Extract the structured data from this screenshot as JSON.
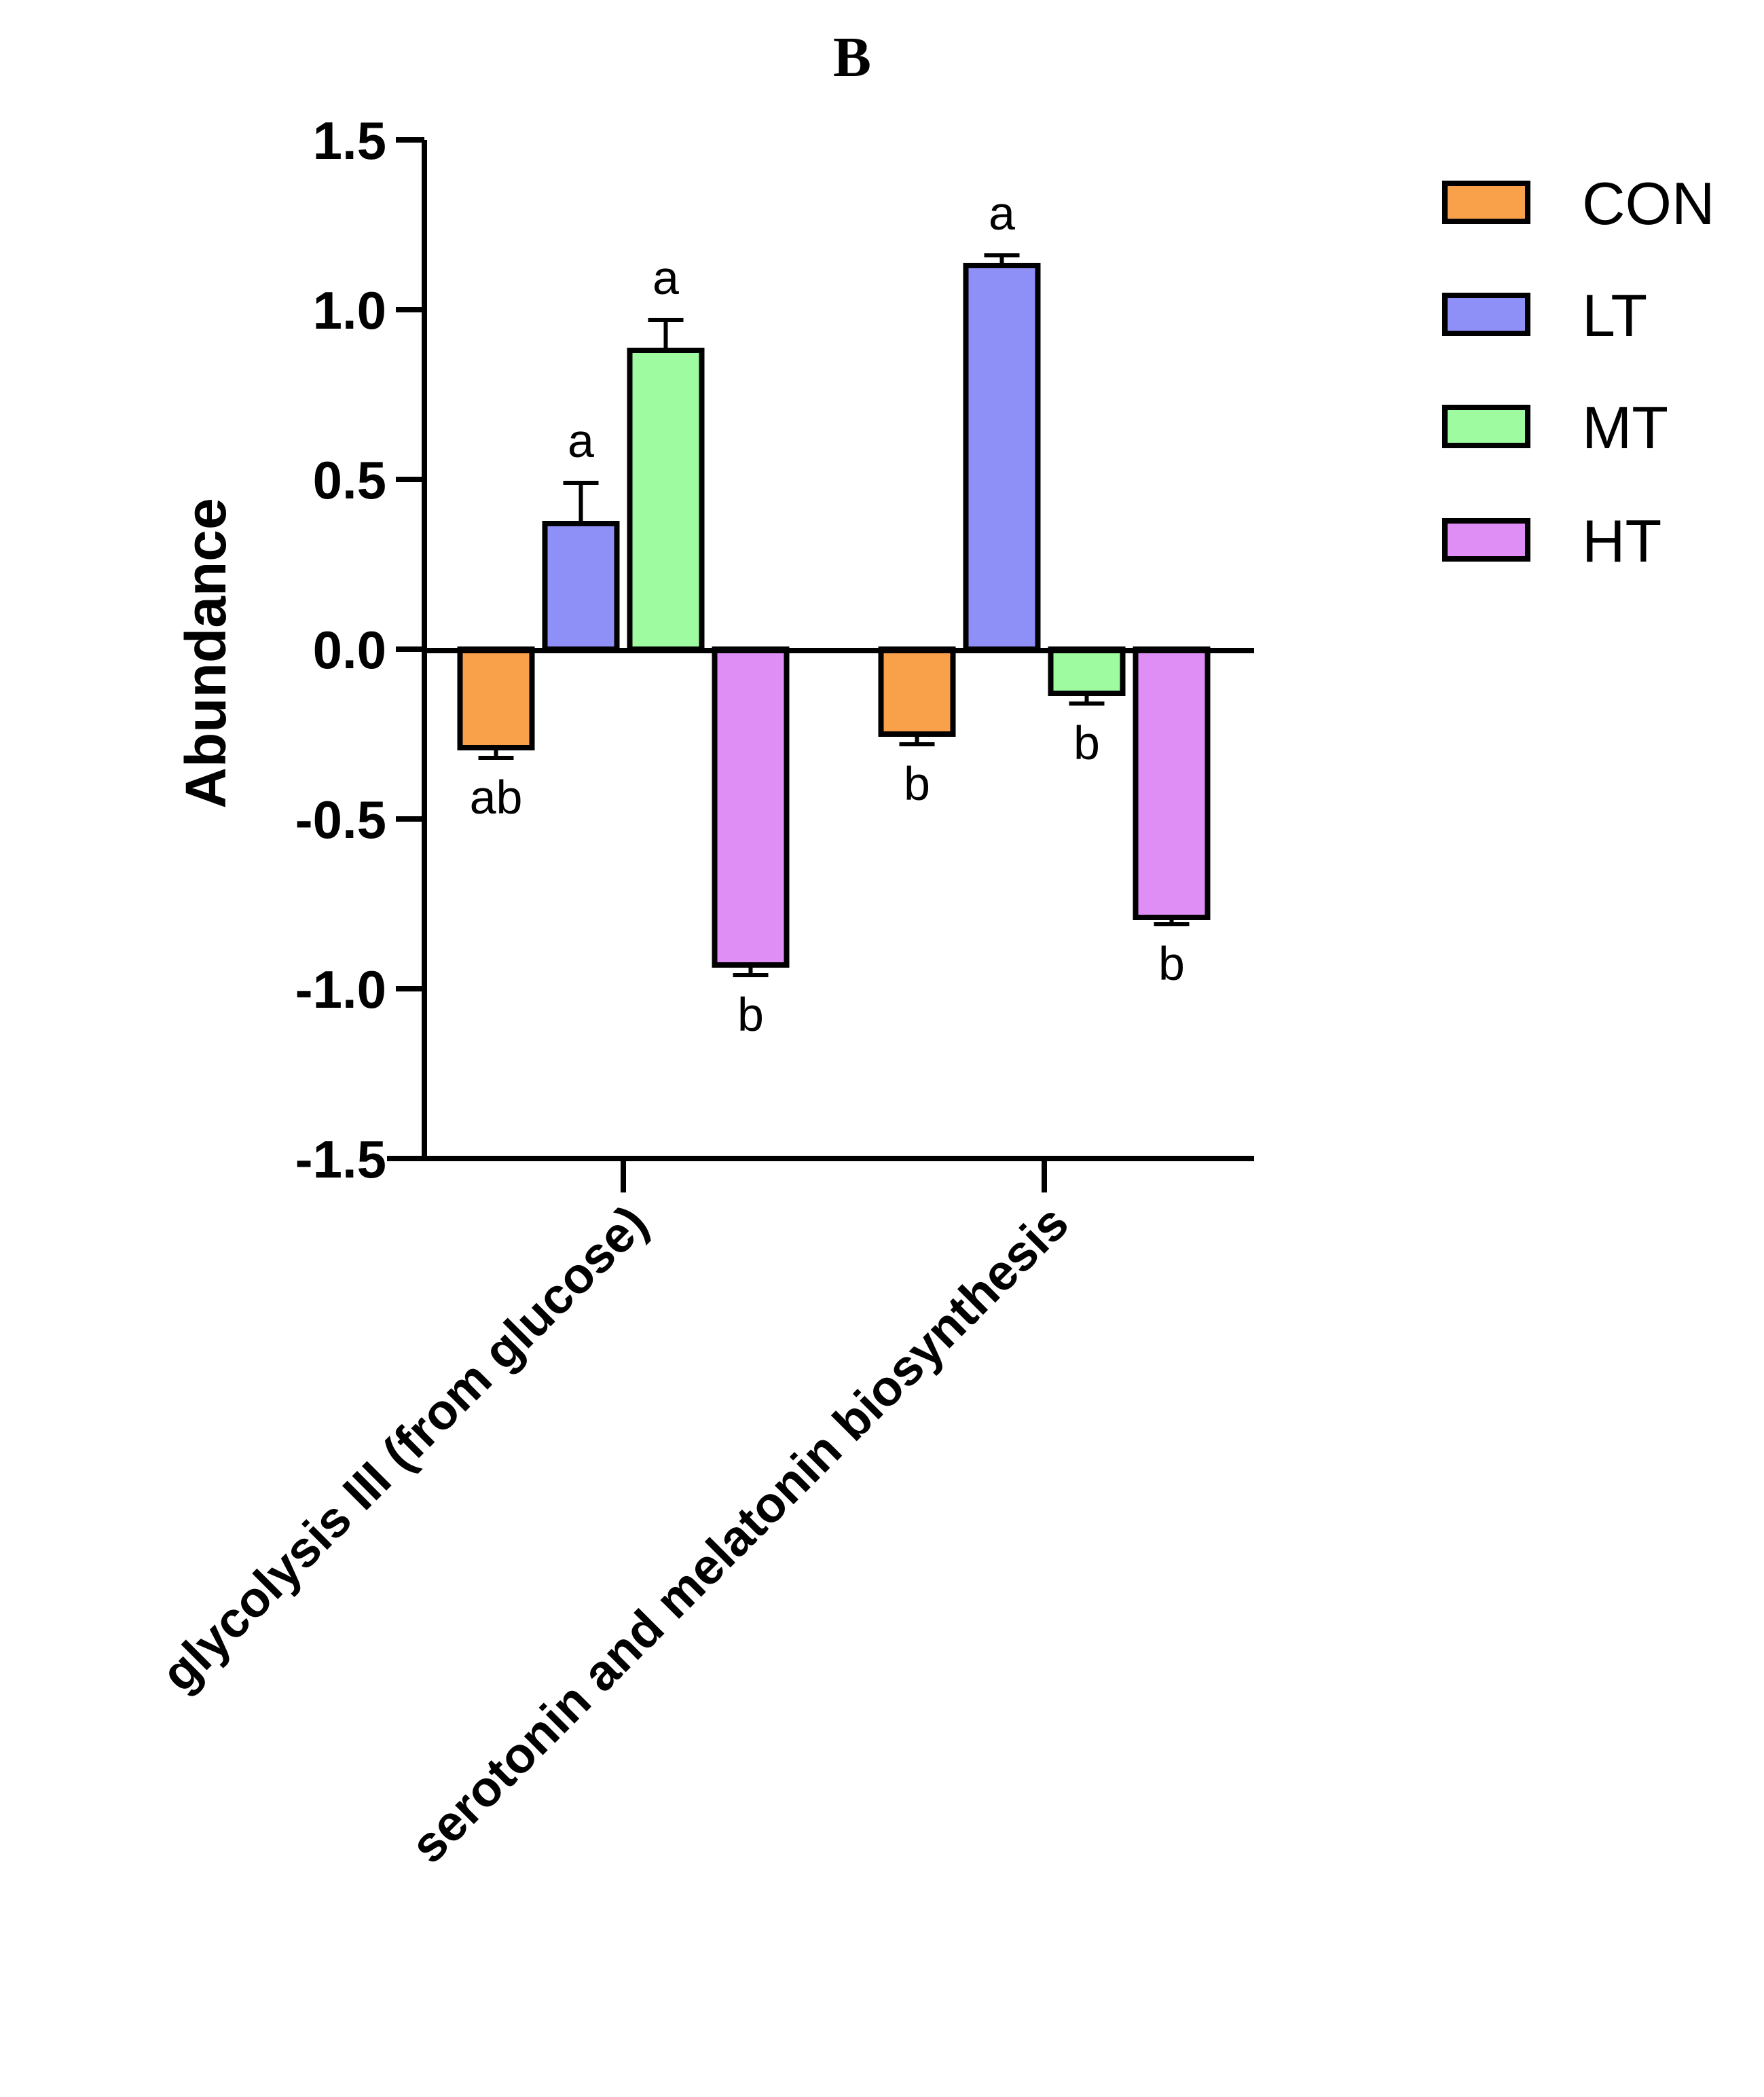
{
  "chart_data": {
    "type": "bar",
    "title": "B",
    "xlabel": "",
    "ylabel": "Abundance",
    "ylim": [
      -1.5,
      1.5
    ],
    "yticks": [
      "1.5",
      "1.0",
      "0.5",
      "0.0",
      "-0.5",
      "-1.0",
      "-1.5"
    ],
    "ytick_values": [
      1.5,
      1.0,
      0.5,
      0.0,
      -0.5,
      -1.0,
      -1.5
    ],
    "categories": [
      "glycolysis III (from glucose)",
      "serotonin and melatonin biosynthesis"
    ],
    "legend_position": "top-right",
    "series": [
      {
        "name": "CON",
        "color": "#f9a04b",
        "values": [
          -0.29,
          -0.25
        ],
        "errors": [
          0.03,
          0.03
        ],
        "labels": [
          "ab",
          "b"
        ]
      },
      {
        "name": "LT",
        "color": "#8f8ff8",
        "values": [
          0.37,
          1.13
        ],
        "errors": [
          0.12,
          0.03
        ],
        "labels": [
          "a",
          "a"
        ]
      },
      {
        "name": "MT",
        "color": "#9ffba0",
        "values": [
          0.88,
          -0.13
        ],
        "errors": [
          0.09,
          0.03
        ],
        "labels": [
          "a",
          "b"
        ]
      },
      {
        "name": "HT",
        "color": "#df8ef5",
        "values": [
          -0.93,
          -0.79
        ],
        "errors": [
          0.03,
          0.02
        ],
        "labels": [
          "b",
          "b"
        ]
      }
    ]
  }
}
